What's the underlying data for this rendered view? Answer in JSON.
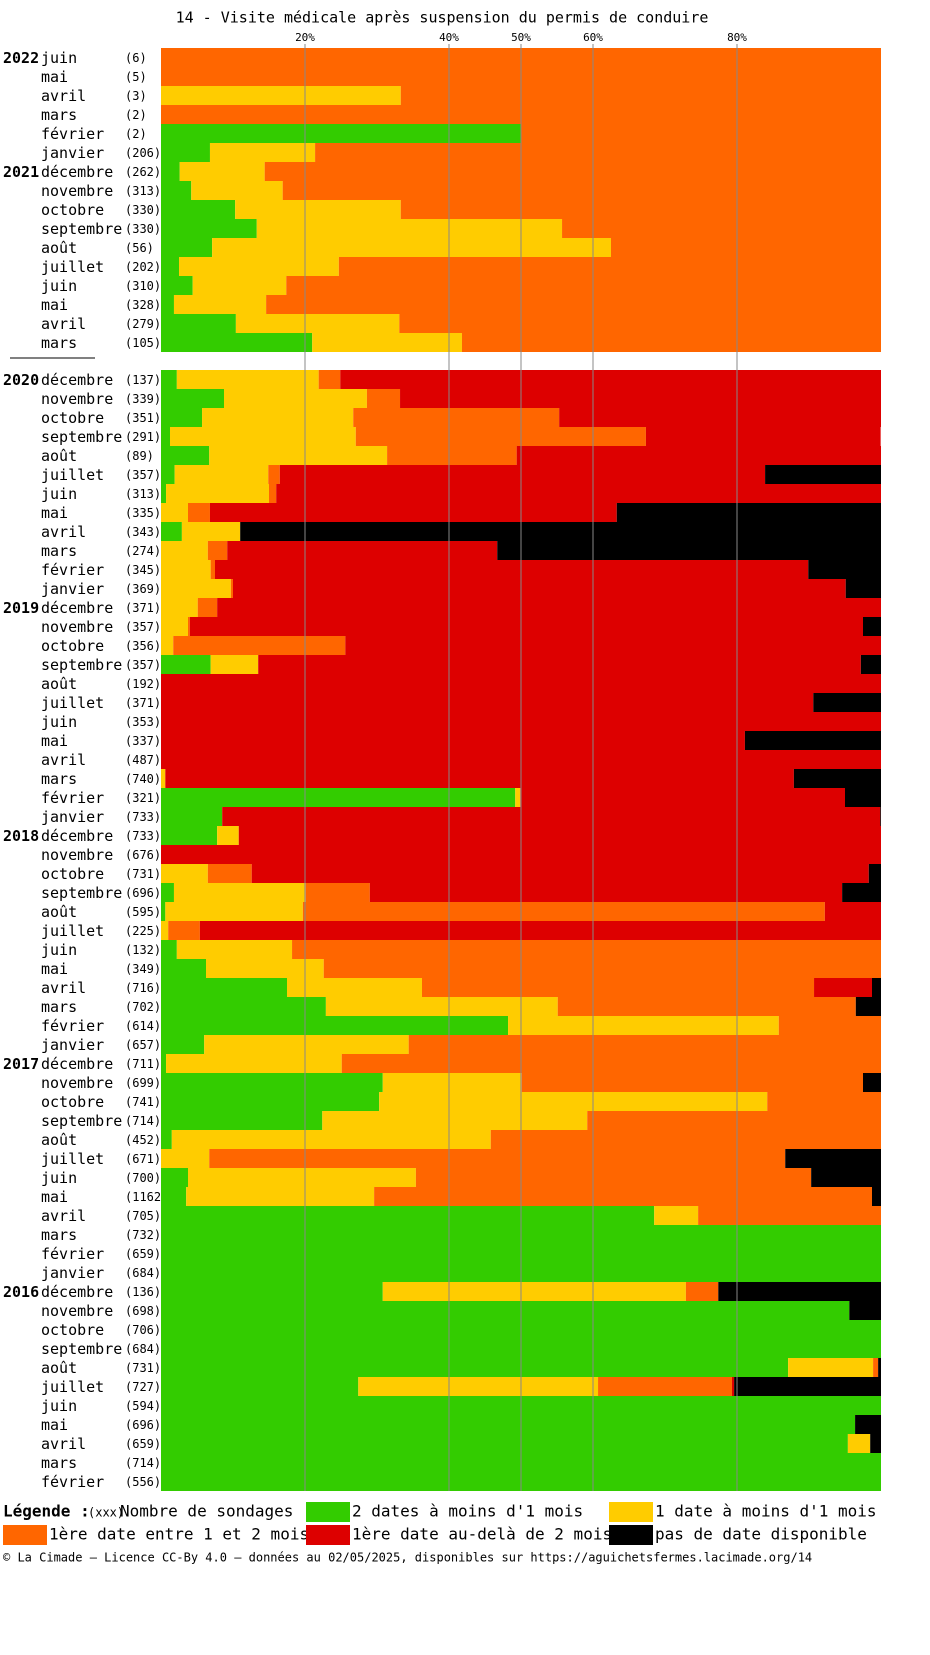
{
  "chart_data": {
    "type": "stacked-bar-horizontal",
    "title": "14 - Visite médicale après suspension du permis de conduire",
    "xlim": [
      0,
      100
    ],
    "xticks": [
      {
        "value": 20,
        "label": "20%"
      },
      {
        "value": 40,
        "label": "40%"
      },
      {
        "value": 50,
        "label": "50%"
      },
      {
        "value": 60,
        "label": "60%"
      },
      {
        "value": 80,
        "label": "80%"
      }
    ],
    "grid": true,
    "sections": [
      16,
      59
    ],
    "years": [
      "2022",
      null,
      null,
      null,
      null,
      null,
      "2021",
      null,
      null,
      null,
      null,
      null,
      null,
      null,
      null,
      null,
      "2020",
      null,
      null,
      null,
      null,
      null,
      null,
      null,
      null,
      null,
      null,
      null,
      "2019",
      null,
      null,
      null,
      null,
      null,
      null,
      null,
      null,
      null,
      null,
      null,
      "2018",
      null,
      null,
      null,
      null,
      null,
      null,
      null,
      null,
      null,
      null,
      null,
      "2017",
      null,
      null,
      null,
      null,
      null,
      null,
      null,
      null,
      null,
      null,
      null,
      "2016",
      null,
      null,
      null,
      null,
      null,
      null,
      null,
      null,
      null,
      null
    ],
    "categories": [
      "juin",
      "mai",
      "avril",
      "mars",
      "février",
      "janvier",
      "décembre",
      "novembre",
      "octobre",
      "septembre",
      "août",
      "juillet",
      "juin",
      "mai",
      "avril",
      "mars",
      "décembre",
      "novembre",
      "octobre",
      "septembre",
      "août",
      "juillet",
      "juin",
      "mai",
      "avril",
      "mars",
      "février",
      "janvier",
      "décembre",
      "novembre",
      "octobre",
      "septembre",
      "août",
      "juillet",
      "juin",
      "mai",
      "avril",
      "mars",
      "février",
      "janvier",
      "décembre",
      "novembre",
      "octobre",
      "septembre",
      "août",
      "juillet",
      "juin",
      "mai",
      "avril",
      "mars",
      "février",
      "janvier",
      "décembre",
      "novembre",
      "octobre",
      "septembre",
      "août",
      "juillet",
      "juin",
      "mai",
      "avril",
      "mars",
      "février",
      "janvier",
      "décembre",
      "novembre",
      "octobre",
      "septembre",
      "août",
      "juillet",
      "juin",
      "mai",
      "avril",
      "mars",
      "février"
    ],
    "counts": [
      "(6)",
      "(5)",
      "(3)",
      "(2)",
      "(2)",
      "(206)",
      "(262)",
      "(313)",
      "(330)",
      "(330)",
      "(56)",
      "(202)",
      "(310)",
      "(328)",
      "(279)",
      "(105)",
      "(137)",
      "(339)",
      "(351)",
      "(291)",
      "(89)",
      "(357)",
      "(313)",
      "(335)",
      "(343)",
      "(274)",
      "(345)",
      "(369)",
      "(371)",
      "(357)",
      "(356)",
      "(357)",
      "(192)",
      "(371)",
      "(353)",
      "(337)",
      "(487)",
      "(740)",
      "(321)",
      "(733)",
      "(733)",
      "(676)",
      "(731)",
      "(696)",
      "(595)",
      "(225)",
      "(132)",
      "(349)",
      "(716)",
      "(702)",
      "(614)",
      "(657)",
      "(711)",
      "(699)",
      "(741)",
      "(714)",
      "(452)",
      "(671)",
      "(700)",
      "(1162",
      "(705)",
      "(732)",
      "(659)",
      "(684)",
      "(136)",
      "(698)",
      "(706)",
      "(684)",
      "(731)",
      "(727)",
      "(594)",
      "(696)",
      "(659)",
      "(714)",
      "(556)"
    ],
    "series": [
      {
        "name": "2 dates à moins d'1 mois",
        "color": "#33cc00",
        "values": [
          0,
          0,
          0,
          0,
          50,
          6.8,
          2.6,
          4.2,
          10.3,
          13.3,
          7.1,
          2.5,
          4.4,
          1.8,
          10.4,
          21,
          2.2,
          8.75,
          5.7,
          1.25,
          6.7,
          1.9,
          0.7,
          0,
          2.9,
          0,
          0,
          0,
          0,
          0,
          0,
          6.9,
          0,
          0,
          0,
          0,
          0,
          0,
          49.2,
          8.5,
          7.8,
          0,
          0,
          1.8,
          0.6,
          0,
          2.2,
          6.25,
          17.5,
          22.9,
          48.2,
          6,
          0.7,
          30.8,
          30.3,
          22.4,
          1.5,
          0,
          3.75,
          3.5,
          68.5,
          100,
          100,
          100,
          30.8,
          95.6,
          100,
          100,
          87.1,
          27.4,
          100,
          96.4,
          95.4,
          100,
          100
        ]
      },
      {
        "name": "1 date à moins d'1 mois",
        "color": "#ffcc00",
        "values": [
          0,
          0,
          33.3,
          0,
          0,
          14.6,
          11.8,
          12.7,
          23,
          42.4,
          55.4,
          22.2,
          13,
          12.8,
          22.7,
          20.8,
          19.7,
          19.85,
          21,
          25.8,
          24.7,
          13,
          14.3,
          3.75,
          8.1,
          6.5,
          6.9,
          9.7,
          5.1,
          3.75,
          1.7,
          6.6,
          0,
          0,
          0,
          0,
          0,
          0.6,
          0.7,
          0,
          3,
          0,
          6.5,
          18.3,
          19.1,
          1,
          16,
          16.35,
          18.75,
          32.2,
          37.6,
          28.4,
          24.4,
          19.3,
          53.9,
          36.8,
          44.3,
          6.7,
          31.65,
          26.1,
          6.1,
          0,
          0,
          0,
          42.1,
          0,
          0,
          0,
          11.8,
          33.3,
          0,
          0,
          3.1,
          0,
          0
        ]
      },
      {
        "name": "1ère date entre 1 et 2 mois",
        "color": "#ff6600",
        "values": [
          100,
          100,
          66.7,
          100,
          50,
          78.6,
          85.6,
          83.1,
          66.7,
          44.3,
          37.5,
          75.3,
          82.6,
          85.4,
          66.9,
          58.2,
          3,
          4.6,
          28.6,
          40.3,
          18,
          1.6,
          1,
          3.05,
          0,
          2.7,
          0.6,
          0.3,
          2.7,
          0.25,
          23.9,
          0,
          0,
          0,
          0,
          0,
          0,
          0,
          0,
          0,
          0,
          0,
          6.1,
          8.9,
          72.5,
          4.4,
          81.8,
          77.4,
          54.45,
          41.4,
          14.2,
          65.6,
          74.9,
          47.4,
          15.8,
          40.8,
          54.2,
          80,
          54.9,
          69.15,
          25.4,
          0,
          0,
          0,
          4.5,
          0,
          0,
          0,
          0.7,
          18.6,
          0,
          0,
          0,
          0,
          0
        ]
      },
      {
        "name": "1ère date au-delà de 2 mois",
        "color": "#dd0000",
        "values": [
          0,
          0,
          0,
          0,
          0,
          0,
          0,
          0,
          0,
          0,
          0,
          0,
          0,
          0,
          0,
          0,
          75.1,
          66.8,
          44.7,
          32.6,
          50.6,
          67.4,
          84,
          56.5,
          0,
          37.5,
          82.4,
          85.1,
          92.2,
          93.5,
          74.4,
          83.7,
          100,
          90.6,
          100,
          81.1,
          100,
          87.3,
          45.1,
          91.4,
          89.2,
          100,
          85.7,
          65.6,
          7.8,
          94.6,
          0,
          0,
          8.05,
          0,
          0,
          0,
          0,
          0,
          0,
          0,
          0,
          0,
          0,
          0,
          0,
          0,
          0,
          0,
          0,
          0,
          0,
          0,
          0,
          0.3,
          0,
          0,
          0,
          0,
          0
        ]
      },
      {
        "name": "pas de date disponible",
        "color": "#000000",
        "values": [
          0,
          0,
          0,
          0,
          0,
          0,
          0,
          0,
          0,
          0,
          0,
          0,
          0,
          0,
          0,
          0,
          0,
          0,
          0,
          0,
          0,
          16.1,
          0,
          36.7,
          89,
          53.3,
          10.1,
          4.9,
          0,
          2.5,
          0,
          2.8,
          0,
          9.4,
          0,
          18.9,
          0,
          12.1,
          5,
          0.1,
          0,
          0,
          1.7,
          5.4,
          0,
          0,
          0,
          0,
          1.25,
          3.5,
          0,
          0,
          0,
          2.5,
          0,
          0,
          0,
          13.3,
          9.7,
          1.25,
          0,
          0,
          0,
          0,
          22.6,
          4.4,
          0,
          0,
          0.4,
          20.4,
          0,
          3.6,
          1.5,
          0,
          0
        ]
      }
    ],
    "legend_title": "Légende :",
    "count_legend_symbol": "(xxx)",
    "count_legend_text": "Nombre de sondages",
    "footer": "© La Cimade — Licence CC-By 4.0 — données au 02/05/2025, disponibles sur https://aguichetsfermes.lacimade.org/14"
  }
}
